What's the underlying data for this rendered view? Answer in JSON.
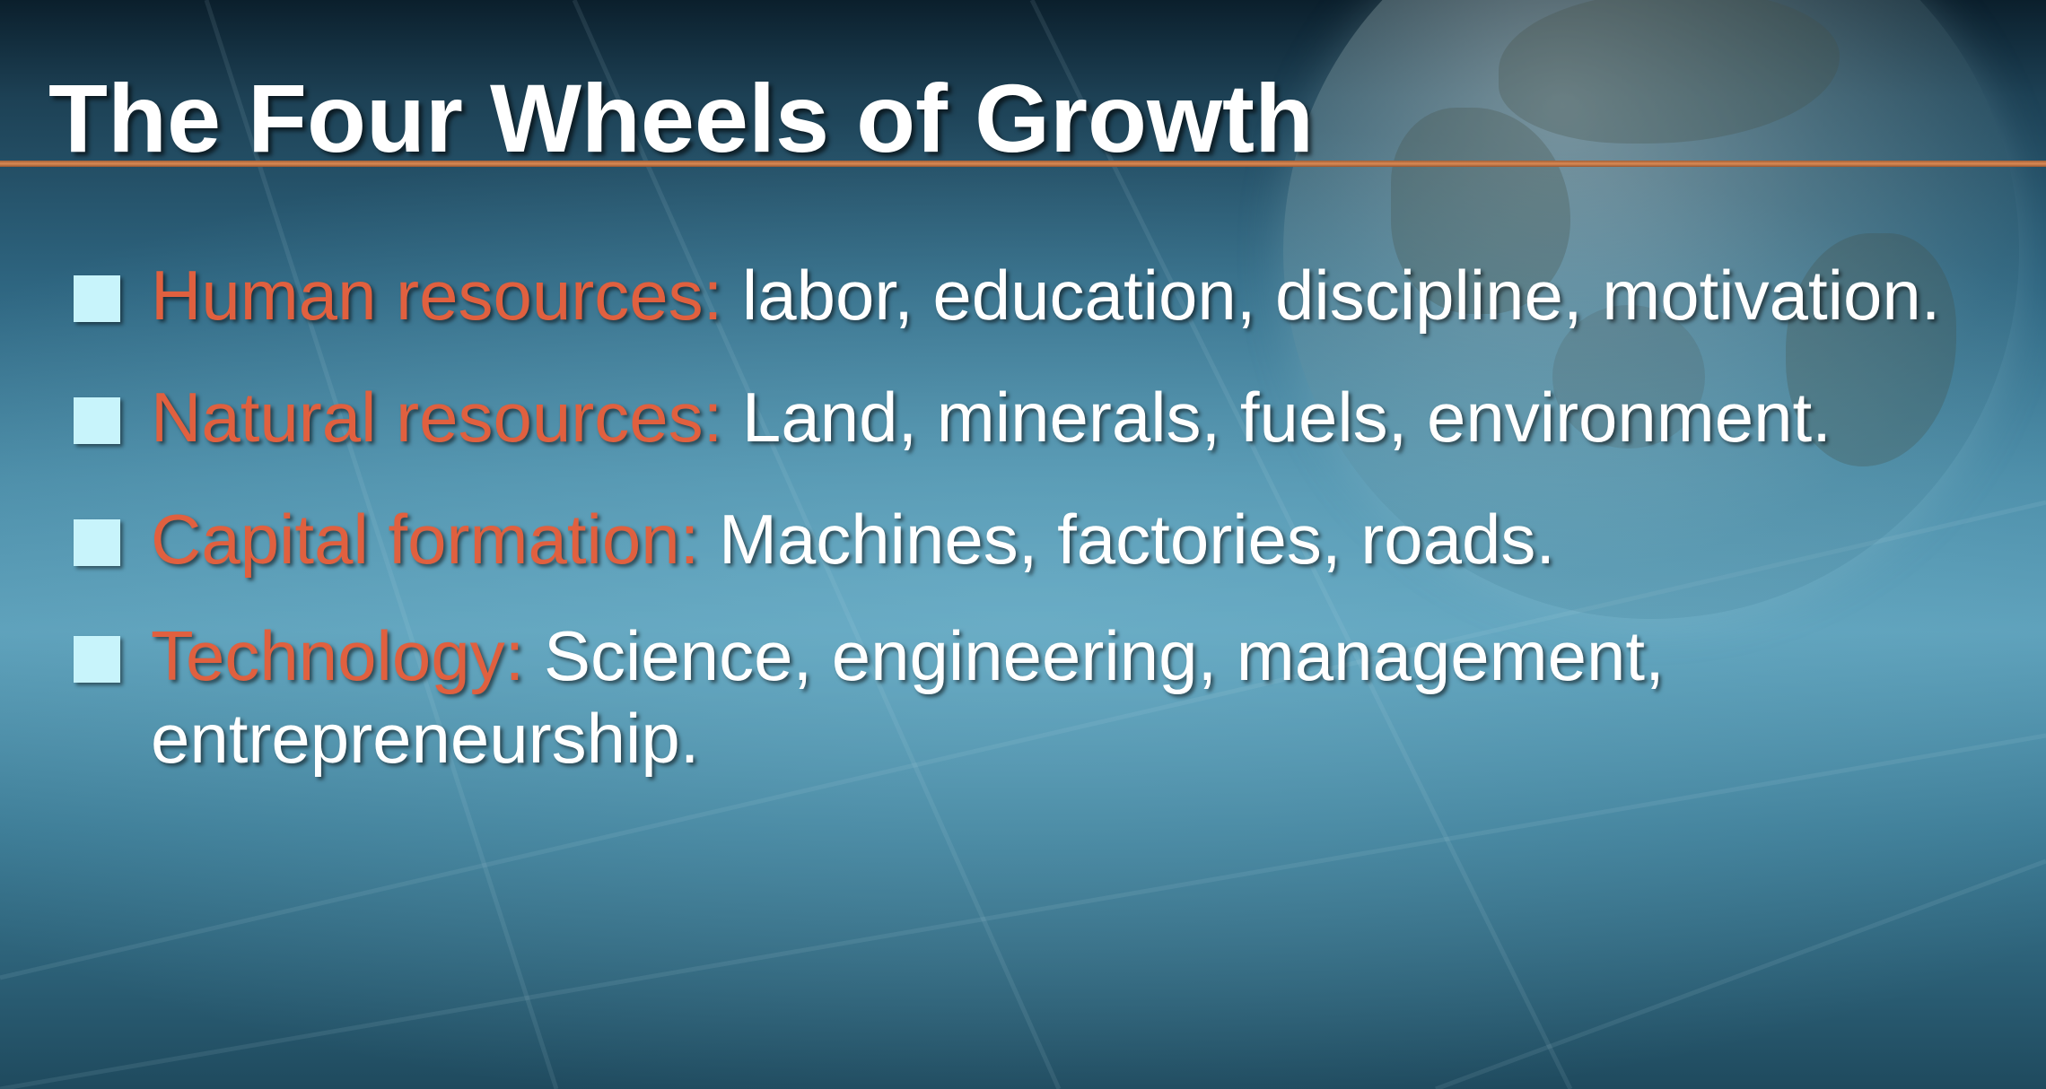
{
  "slide": {
    "title": "The Four Wheels of Growth",
    "items": [
      {
        "term": "Human resources:",
        "detail": " labor, education, discipline, motivation."
      },
      {
        "term": "Natural resources:",
        "detail": " Land, minerals, fuels, environment."
      },
      {
        "term": "Capital formation:",
        "detail": " Machines, factories, roads."
      },
      {
        "term": "Technology:",
        "detail": " Science, engineering, management, entrepreneurship."
      }
    ]
  },
  "colors": {
    "title": "#ffffff",
    "term": "#e0603f",
    "body": "#ffffff",
    "bullet": "#c8f4fb",
    "rule": "#d98a55",
    "background": "#2e6580"
  },
  "icons": {
    "bullet": "square-bullet-icon",
    "backdrop": "globe-icon"
  }
}
